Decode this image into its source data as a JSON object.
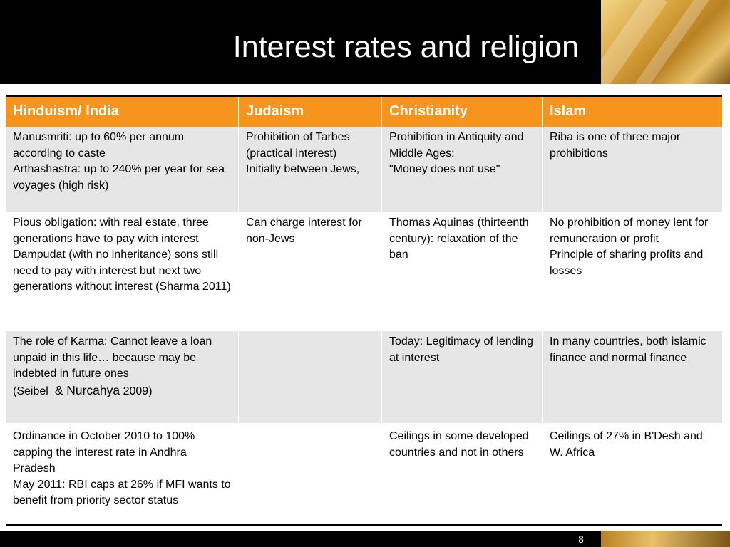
{
  "slide": {
    "title": "Interest rates and religion",
    "page_number": "8"
  },
  "table": {
    "headers": [
      "Hinduism/ India",
      "Judaism",
      "Christianity",
      "Islam"
    ],
    "rows": [
      {
        "hinduism": [
          "Manusmriti: up to 60% per annum according to caste",
          "Arthashastra: up to 240% per year for sea voyages (high risk)"
        ],
        "judaism": [
          "Prohibition of Tarbes (practical interest)",
          "Initially between Jews,"
        ],
        "christianity": [
          "Prohibition in Antiquity and Middle Ages:",
          "\"Money does not use\""
        ],
        "islam": [
          "Riba is one of three major prohibitions"
        ]
      },
      {
        "hinduism": [
          "Pious obligation: with real estate, three generations have to pay with interest",
          "Dampudat (with no inheritance) sons still need to pay with interest but next two generations without interest (Sharma 2011)"
        ],
        "judaism": [
          "Can charge interest for non-Jews"
        ],
        "christianity": [
          "Thomas Aquinas (thirteenth century): relaxation of the ban"
        ],
        "islam": [
          "No prohibition of money lent for remuneration or profit",
          "Principle of sharing profits and losses"
        ]
      },
      {
        "hinduism_a": "The role of Karma: Cannot leave a loan unpaid in this life… because may be indebted in future ones",
        "hinduism_b1": "(Seibel",
        "hinduism_b2": "& Nurcahya",
        "hinduism_b3": "2009)",
        "judaism": [],
        "christianity": [
          "Today: Legitimacy of lending at interest"
        ],
        "islam": [
          "In many countries, both islamic finance and normal finance"
        ]
      },
      {
        "hinduism": [
          "Ordinance in October 2010 to 100% capping the interest rate in Andhra Pradesh",
          "May 2011: RBI caps at 26% if MFI wants to benefit from priority sector status"
        ],
        "judaism": [],
        "christianity": [
          "Ceilings in some developed countries and not in others"
        ],
        "islam": [
          "Ceilings of 27% in B'Desh and W. Africa"
        ]
      }
    ]
  },
  "colors": {
    "header_bg": "#000000",
    "table_header": "#f7941d",
    "row_shade": "#e6e6e6"
  }
}
